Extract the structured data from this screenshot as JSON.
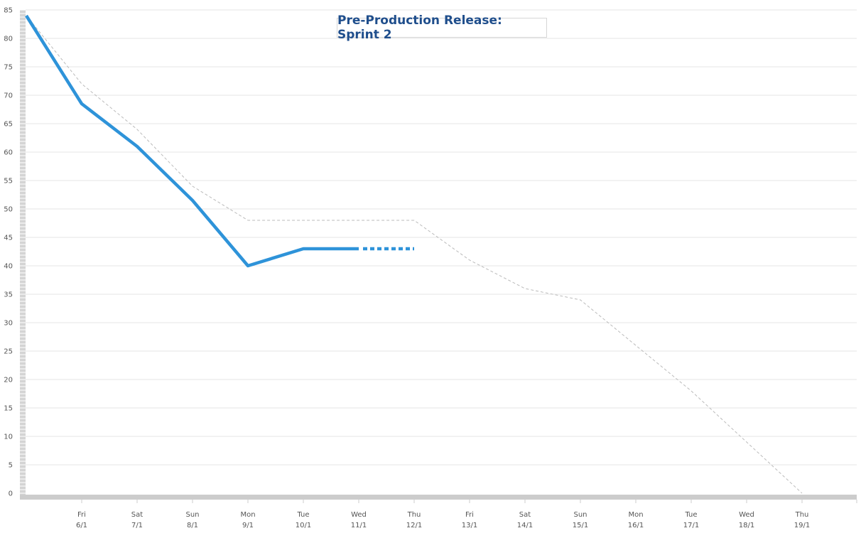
{
  "chart_data": {
    "type": "line",
    "title": "Pre-Production Release: Sprint 2",
    "categories": [
      {
        "day": "",
        "date": ""
      },
      {
        "day": "Fri",
        "date": "6/1"
      },
      {
        "day": "Sat",
        "date": "7/1"
      },
      {
        "day": "Sun",
        "date": "8/1"
      },
      {
        "day": "Mon",
        "date": "9/1"
      },
      {
        "day": "Tue",
        "date": "10/1"
      },
      {
        "day": "Wed",
        "date": "11/1"
      },
      {
        "day": "Thu",
        "date": "12/1"
      },
      {
        "day": "Fri",
        "date": "13/1"
      },
      {
        "day": "Sat",
        "date": "14/1"
      },
      {
        "day": "Sun",
        "date": "15/1"
      },
      {
        "day": "Mon",
        "date": "16/1"
      },
      {
        "day": "Tue",
        "date": "17/1"
      },
      {
        "day": "Wed",
        "date": "18/1"
      },
      {
        "day": "Thu",
        "date": "19/1"
      }
    ],
    "yticks": [
      0,
      5,
      10,
      15,
      20,
      25,
      30,
      35,
      40,
      45,
      50,
      55,
      60,
      65,
      70,
      75,
      80,
      85
    ],
    "ylim": [
      0,
      85
    ],
    "grid": true,
    "series": [
      {
        "style": "dashed",
        "color": "#bbbbbb",
        "values": [
          84,
          72,
          64,
          54,
          48,
          48,
          48,
          48,
          41,
          36,
          34,
          26,
          18,
          9,
          0
        ]
      },
      {
        "style": "solid",
        "color": "#2e93d9",
        "values": [
          84,
          68.5,
          61,
          51.5,
          40,
          43,
          43,
          null,
          null,
          null,
          null,
          null,
          null,
          null,
          null
        ],
        "projection": {
          "from_index": 6,
          "to_index": 7,
          "value": 43
        }
      }
    ]
  }
}
